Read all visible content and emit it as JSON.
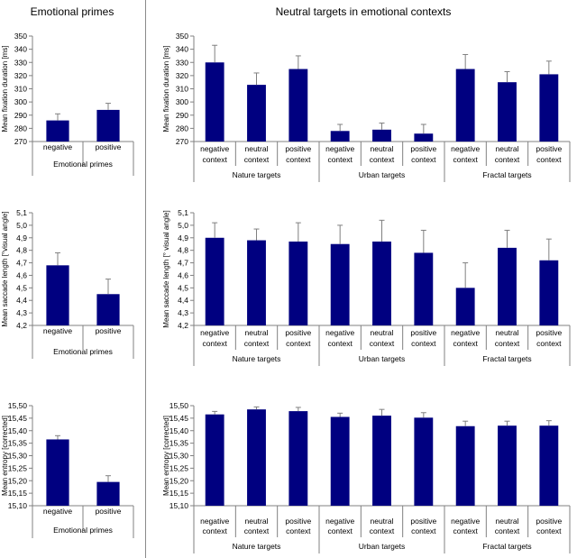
{
  "headers": {
    "left": "Emotional primes",
    "right": "Neutral targets in emotional contexts"
  },
  "colors": {
    "bar": "#000080",
    "axis": "#808080",
    "error": "#808080"
  },
  "chart_data": [
    {
      "id": "primes_fixation",
      "type": "bar",
      "ylabel": "Mean fixation duration [ms]",
      "ylim": [
        270,
        350
      ],
      "yticks": [
        270,
        280,
        290,
        300,
        310,
        320,
        330,
        340,
        350
      ],
      "tick_decimals": 0,
      "categories": [
        "negative",
        "positive"
      ],
      "values": [
        286,
        294
      ],
      "errors": [
        5,
        5
      ],
      "group_label": "Emotional primes"
    },
    {
      "id": "primes_saccade",
      "type": "bar",
      "ylabel": "Mean saccade length [°visual angle]",
      "ylim": [
        4.2,
        5.1
      ],
      "yticks": [
        4.2,
        4.3,
        4.4,
        4.5,
        4.6,
        4.7,
        4.8,
        4.9,
        5.0,
        5.1
      ],
      "tick_decimals": 1,
      "categories": [
        "negative",
        "positive"
      ],
      "values": [
        4.68,
        4.45
      ],
      "errors": [
        0.1,
        0.12
      ],
      "group_label": "Emotional primes"
    },
    {
      "id": "primes_entropy",
      "type": "bar",
      "ylabel": "Mean entropy [corrected]",
      "ylim": [
        15.1,
        15.5
      ],
      "yticks": [
        15.1,
        15.15,
        15.2,
        15.25,
        15.3,
        15.35,
        15.4,
        15.45,
        15.5
      ],
      "tick_decimals": 2,
      "categories": [
        "negative",
        "positive"
      ],
      "values": [
        15.365,
        15.195
      ],
      "errors": [
        0.015,
        0.025
      ],
      "group_label": "Emotional primes"
    },
    {
      "id": "targets_fixation",
      "type": "bar",
      "ylabel": "Mean fixation duration [ms]",
      "ylim": [
        270,
        350
      ],
      "yticks": [
        270,
        280,
        290,
        300,
        310,
        320,
        330,
        340,
        350
      ],
      "tick_decimals": 0,
      "categories": [
        [
          "negative",
          "context"
        ],
        [
          "neutral",
          "context"
        ],
        [
          "positive",
          "context"
        ],
        [
          "negative",
          "context"
        ],
        [
          "neutral",
          "context"
        ],
        [
          "positive",
          "context"
        ],
        [
          "negative",
          "context"
        ],
        [
          "neutral",
          "context"
        ],
        [
          "positive",
          "context"
        ]
      ],
      "values": [
        330,
        313,
        325,
        278,
        279,
        276,
        325,
        315,
        321
      ],
      "errors": [
        13,
        9,
        10,
        5,
        5,
        7,
        11,
        8,
        10
      ],
      "groups": [
        "Nature targets",
        "Urban targets",
        "Fractal targets"
      ]
    },
    {
      "id": "targets_saccade",
      "type": "bar",
      "ylabel": "Mean saccade length [° visual angle]",
      "ylim": [
        4.2,
        5.1
      ],
      "yticks": [
        4.2,
        4.3,
        4.4,
        4.5,
        4.6,
        4.7,
        4.8,
        4.9,
        5.0,
        5.1
      ],
      "tick_decimals": 1,
      "categories": [
        [
          "negative",
          "context"
        ],
        [
          "neutral",
          "context"
        ],
        [
          "positive",
          "context"
        ],
        [
          "negative",
          "context"
        ],
        [
          "neutral",
          "context"
        ],
        [
          "positive",
          "context"
        ],
        [
          "negative",
          "context"
        ],
        [
          "neutral",
          "context"
        ],
        [
          "positive",
          "context"
        ]
      ],
      "values": [
        4.9,
        4.88,
        4.87,
        4.85,
        4.87,
        4.78,
        4.5,
        4.82,
        4.72
      ],
      "errors": [
        0.12,
        0.09,
        0.15,
        0.15,
        0.17,
        0.18,
        0.2,
        0.14,
        0.17
      ],
      "groups": [
        "Nature targets",
        "Urban targets",
        "Fractal targets"
      ]
    },
    {
      "id": "targets_entropy",
      "type": "bar",
      "ylabel": "Mean entropy [corrected]",
      "ylim": [
        15.1,
        15.5
      ],
      "yticks": [
        15.1,
        15.15,
        15.2,
        15.25,
        15.3,
        15.35,
        15.4,
        15.45,
        15.5
      ],
      "tick_decimals": 2,
      "categories": [
        [
          "negative",
          "context"
        ],
        [
          "neutral",
          "context"
        ],
        [
          "positive",
          "context"
        ],
        [
          "negative",
          "context"
        ],
        [
          "neutral",
          "context"
        ],
        [
          "positive",
          "context"
        ],
        [
          "negative",
          "context"
        ],
        [
          "neutral",
          "context"
        ],
        [
          "positive",
          "context"
        ]
      ],
      "values": [
        15.465,
        15.485,
        15.478,
        15.455,
        15.46,
        15.452,
        15.418,
        15.42,
        15.42
      ],
      "errors": [
        0.012,
        0.01,
        0.015,
        0.015,
        0.025,
        0.02,
        0.02,
        0.018,
        0.02
      ],
      "groups": [
        "Nature targets",
        "Urban targets",
        "Fractal targets"
      ]
    }
  ]
}
